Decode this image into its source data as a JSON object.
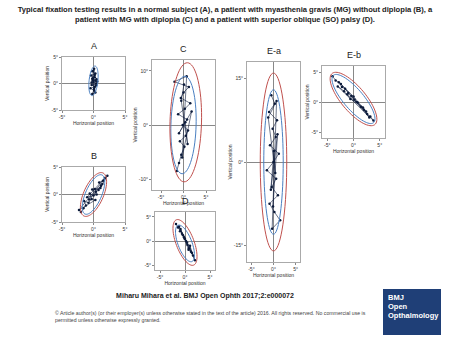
{
  "title": "Typical fixation testing results in a normal subject (A), a patient with myasthenia gravis (MG) without diplopia (B), a patient with MG with diplopia (C) and a patient with superior oblique (SO) palsy (D).",
  "citation": "Miharu Mihara et al. BMJ Open Ophth 2017;2:e000072",
  "copyright": "© Article author(s) (or their employer(s) unless otherwise stated in the text of the article) 2016. All rights reserved. No commercial use is permitted unless otherwise expressly granted.",
  "logo": [
    "BMJ",
    "Open",
    "Opthalmology"
  ],
  "chart_data": [
    {
      "type": "scatter",
      "title": "A",
      "x_label": "Horizontal position",
      "y_label": "Vertical position",
      "color": "#0b1a3a",
      "marker": "circle",
      "grid": false,
      "x": [
        0.1,
        -0.2,
        0.3,
        -0.4,
        0.2,
        0.5,
        -0.1,
        0.0,
        0.4,
        -0.3,
        0.2,
        -0.5,
        0.1,
        0.3,
        -0.2,
        0.6,
        -0.1,
        0.2,
        0.0,
        -0.3,
        0.4,
        0.1,
        -0.2,
        0.3
      ],
      "values": [
        2.8,
        2.3,
        1.9,
        1.5,
        1.2,
        0.8,
        0.6,
        0.3,
        0.0,
        -0.3,
        -0.6,
        -0.9,
        -1.3,
        -1.7,
        -2.0,
        0.4,
        1.0,
        1.6,
        2.4,
        0.2,
        -0.4,
        -1.0,
        0.9,
        0.5
      ],
      "xlim": [
        -5,
        5
      ],
      "ylim": [
        -5,
        5
      ],
      "xticks": [
        {
          "value": -5,
          "label": "-5°"
        },
        {
          "value": 0,
          "label": "0°"
        },
        {
          "value": 5,
          "label": "5°"
        }
      ],
      "yticks": [
        {
          "value": -5,
          "label": "-5°"
        },
        {
          "value": 0,
          "label": "0°"
        },
        {
          "value": 5,
          "label": "5°"
        }
      ],
      "ellipses": [
        {
          "cx": 0,
          "cy": 0.5,
          "a": 2.8,
          "b": 0.7,
          "angle": 85,
          "color": "#4a7fc1"
        }
      ]
    },
    {
      "type": "scatter",
      "title": "B",
      "x_label": "Horizontal position",
      "y_label": "Vertical position",
      "color": "#0b1a3a",
      "marker": "circle",
      "grid": false,
      "x": [
        -2.0,
        -1.6,
        -1.2,
        -1.5,
        -0.8,
        -0.3,
        -0.6,
        0.0,
        0.4,
        0.2,
        0.8,
        1.2,
        0.9,
        1.5,
        1.8,
        -1.0,
        0.5,
        -0.2,
        1.1,
        2.2,
        -2.3,
        0.3,
        -0.7,
        1.4
      ],
      "values": [
        -3.2,
        -2.5,
        -2.0,
        -1.2,
        -1.5,
        -0.8,
        0.2,
        -0.2,
        0.5,
        1.0,
        0.8,
        1.6,
        2.2,
        2.5,
        3.0,
        -0.5,
        0.0,
        0.9,
        1.2,
        3.4,
        -2.8,
        -1.0,
        -0.9,
        1.9
      ],
      "xlim": [
        -5,
        5
      ],
      "ylim": [
        -5,
        5
      ],
      "xticks": [
        {
          "value": -5,
          "label": "-5°"
        },
        {
          "value": 0,
          "label": "0°"
        },
        {
          "value": 5,
          "label": "5°"
        }
      ],
      "yticks": [
        {
          "value": -5,
          "label": "-5°"
        },
        {
          "value": 0,
          "label": "0°"
        },
        {
          "value": 5,
          "label": "5°"
        }
      ],
      "ellipses": [
        {
          "cx": 0,
          "cy": 0,
          "a": 3.8,
          "b": 1.3,
          "angle": 70,
          "color": "#4a7fc1"
        },
        {
          "cx": 0,
          "cy": 0,
          "a": 4.2,
          "b": 1.6,
          "angle": 70,
          "color": "#c0504d"
        }
      ]
    },
    {
      "type": "scatter",
      "title": "C",
      "x_label": "Horizontal position",
      "y_label": "Vertical position",
      "color": "#0b1a3a",
      "marker": "circle",
      "grid": false,
      "x": [
        -1.5,
        -1.0,
        -0.5,
        0.2,
        -0.8,
        0.5,
        1.0,
        -0.2,
        0.8,
        -1.2,
        0.3,
        1.5,
        -0.6,
        0.0,
        1.2,
        -2.0,
        0.7,
        -0.3,
        1.8,
        -1.0,
        0.4,
        0.9,
        -0.5,
        0.1
      ],
      "values": [
        -8.5,
        -7,
        -5.5,
        -4,
        -3,
        -2,
        -1,
        0,
        1,
        2,
        3,
        4,
        5,
        6,
        7,
        8,
        9,
        -6,
        2.5,
        -1.5,
        0.5,
        -3.5,
        4.5,
        7.5
      ],
      "xlim": [
        -7,
        7
      ],
      "ylim": [
        -12,
        12
      ],
      "xticks": [
        {
          "value": -5,
          "label": "-5°"
        },
        {
          "value": 0,
          "label": "0°"
        },
        {
          "value": 5,
          "label": "5°"
        }
      ],
      "yticks": [
        {
          "value": -10,
          "label": "-10°"
        },
        {
          "value": 0,
          "label": "0°"
        },
        {
          "value": 10,
          "label": "10°"
        }
      ],
      "ellipses": [
        {
          "cx": 0,
          "cy": 0,
          "a": 9,
          "b": 2.8,
          "angle": 88,
          "color": "#4a7fc1"
        },
        {
          "cx": 0.5,
          "cy": 0.5,
          "a": 11,
          "b": 3.5,
          "angle": 88,
          "color": "#c0504d"
        }
      ]
    },
    {
      "type": "scatter",
      "title": "D",
      "x_label": "Horizontal position",
      "color": "#0b1a3a",
      "marker": "circle",
      "grid": false,
      "x": [
        -1.8,
        -1.4,
        -1.0,
        -0.6,
        -0.9,
        -0.2,
        0.2,
        0.0,
        0.5,
        0.8,
        1.2,
        1.0,
        1.6,
        2.0,
        -1.2,
        0.4,
        -0.4,
        1.4,
        0.7,
        -0.1
      ],
      "values": [
        3.5,
        2.8,
        2.0,
        1.5,
        2.5,
        0.8,
        0.0,
        0.4,
        -0.8,
        -1.5,
        -2.2,
        -1.0,
        -3.0,
        -4.0,
        3.0,
        -0.3,
        1.2,
        -2.5,
        -1.8,
        0.5
      ],
      "xlim": [
        -6,
        6
      ],
      "ylim": [
        -6,
        6
      ],
      "xticks": [
        {
          "value": -5,
          "label": "-5°"
        },
        {
          "value": 0,
          "label": "0°"
        },
        {
          "value": 5,
          "label": "5°"
        }
      ],
      "yticks": [
        {
          "value": -5,
          "label": "-5°"
        },
        {
          "value": 0,
          "label": "0°"
        },
        {
          "value": 5,
          "label": "5°"
        }
      ],
      "ellipses": [
        {
          "cx": 0,
          "cy": -0.5,
          "a": 4,
          "b": 1.4,
          "angle": 110,
          "color": "#4a7fc1"
        },
        {
          "cx": 0,
          "cy": -0.3,
          "a": 5,
          "b": 1.8,
          "angle": 110,
          "color": "#c0504d"
        }
      ]
    },
    {
      "type": "scatter",
      "title": "E-a",
      "x_label": "Horizontal position",
      "y_label": "Vertical position",
      "color": "#0b1a3a",
      "marker": "circle",
      "grid": false,
      "x": [
        -0.5,
        0.3,
        -1.0,
        0.8,
        -0.2,
        0.5,
        -0.8,
        1.2,
        0.0,
        -1.5,
        0.6,
        -0.4,
        1.0,
        -0.9,
        0.2,
        1.5,
        -0.3,
        0.7,
        -1.2,
        0.4,
        0.1,
        -0.6,
        0.9,
        -0.1
      ],
      "values": [
        12,
        10.5,
        9,
        7.5,
        6,
        4.5,
        3,
        1.5,
        0,
        -1.5,
        -3,
        -4.5,
        -6,
        -7.5,
        -9,
        -10.5,
        -12,
        11,
        8,
        -2,
        2,
        -5,
        5,
        -8
      ],
      "xlim": [
        -6,
        6
      ],
      "ylim": [
        -18,
        18
      ],
      "xticks": [
        {
          "value": -5,
          "label": "-5°"
        },
        {
          "value": 0,
          "label": "0°"
        },
        {
          "value": 5,
          "label": "5°"
        }
      ],
      "yticks": [
        {
          "value": -15,
          "label": "-15°"
        },
        {
          "value": 0,
          "label": "0°"
        },
        {
          "value": 15,
          "label": "15°"
        }
      ],
      "ellipses": [
        {
          "cx": 0,
          "cy": 0,
          "a": 13,
          "b": 2.2,
          "angle": 90,
          "color": "#4a7fc1"
        },
        {
          "cx": 0,
          "cy": 0,
          "a": 16,
          "b": 3,
          "angle": 90,
          "color": "#c0504d"
        }
      ]
    },
    {
      "type": "scatter",
      "title": "E-b",
      "x_label": "Horizontal position",
      "y_label": "Vertical position",
      "color": "#0b1a3a",
      "marker": "circle",
      "grid": false,
      "x": [
        -4.0,
        -3.4,
        -2.8,
        -2.2,
        -1.6,
        -1.0,
        -0.4,
        0.2,
        0.8,
        1.4,
        2.0,
        2.6,
        3.2,
        3.8,
        -3.0,
        -1.8,
        -0.6,
        0.6,
        1.8,
        3.0,
        -2.4,
        0.0,
        2.4,
        -1.2
      ],
      "values": [
        4.3,
        3.6,
        3.3,
        2.5,
        2.2,
        1.5,
        1.0,
        0.4,
        -0.1,
        -0.8,
        -1.3,
        -2.0,
        -2.4,
        -3.1,
        2.6,
        1.8,
        0.5,
        0.0,
        -0.9,
        -2.6,
        3.0,
        0.9,
        -1.6,
        1.3
      ],
      "xlim": [
        -6,
        6
      ],
      "ylim": [
        -6,
        6
      ],
      "xticks": [
        {
          "value": -5,
          "label": "-5°"
        },
        {
          "value": 0,
          "label": "0°"
        },
        {
          "value": 5,
          "label": "5°"
        }
      ],
      "yticks": [
        {
          "value": -5,
          "label": "-5°"
        },
        {
          "value": 0,
          "label": "0°"
        },
        {
          "value": 5,
          "label": "5°"
        }
      ],
      "ellipses": [
        {
          "cx": 0,
          "cy": 0.5,
          "a": 5.5,
          "b": 1.8,
          "angle": 135,
          "color": "#4a7fc1"
        },
        {
          "cx": 0,
          "cy": 0.5,
          "a": 5.9,
          "b": 2.2,
          "angle": 135,
          "color": "#c0504d"
        }
      ]
    }
  ]
}
